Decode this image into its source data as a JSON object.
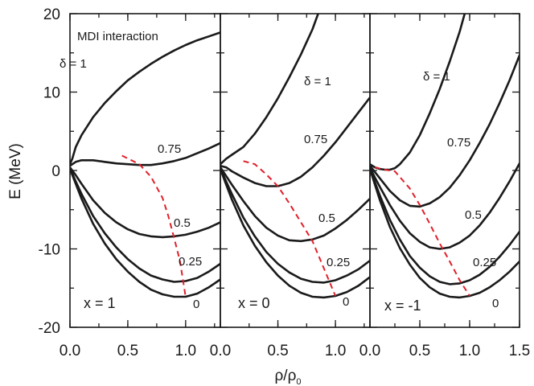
{
  "chart_data": {
    "type": "line",
    "xlabel": "ρ/ρ",
    "xlabel_sub": "0",
    "ylabel": "E (MeV)",
    "ylim": [
      -20,
      20
    ],
    "yticks": [
      "20",
      "10",
      "0",
      "-10",
      "-20"
    ],
    "xticks_first": [
      "0.0",
      "0.5",
      "1.0"
    ],
    "xticks_second": [
      "0.0",
      "0.5",
      "1.0"
    ],
    "xticks_third": [
      "0.0",
      "0.5",
      "1.0",
      "1.5"
    ],
    "annotation": "MDI interaction",
    "panels": [
      {
        "x_param_label": "x = 1",
        "xlim": [
          0,
          1.3
        ],
        "series": [
          {
            "label": "δ = 1",
            "x": [
              0.0,
              0.02,
              0.05,
              0.1,
              0.2,
              0.3,
              0.4,
              0.5,
              0.6,
              0.7,
              0.8,
              0.9,
              1.0,
              1.1,
              1.2,
              1.3
            ],
            "y": [
              0.8,
              1.5,
              3.0,
              4.5,
              6.8,
              8.6,
              10.1,
              11.5,
              12.6,
              13.6,
              14.5,
              15.3,
              16.0,
              16.6,
              17.1,
              17.6
            ]
          },
          {
            "label": "0.75",
            "x": [
              0.0,
              0.05,
              0.1,
              0.2,
              0.3,
              0.4,
              0.5,
              0.6,
              0.7,
              0.8,
              0.9,
              1.0,
              1.1,
              1.2,
              1.3
            ],
            "y": [
              0.6,
              1.1,
              1.3,
              1.3,
              1.1,
              0.9,
              0.8,
              0.7,
              0.7,
              0.9,
              1.2,
              1.6,
              2.2,
              2.8,
              3.5
            ]
          },
          {
            "label": "0.5",
            "x": [
              0.0,
              0.05,
              0.1,
              0.2,
              0.3,
              0.4,
              0.5,
              0.6,
              0.7,
              0.8,
              0.9,
              1.0,
              1.1,
              1.2,
              1.3
            ],
            "y": [
              0.4,
              -0.6,
              -1.7,
              -3.8,
              -5.4,
              -6.6,
              -7.5,
              -8.1,
              -8.4,
              -8.5,
              -8.4,
              -8.2,
              -7.8,
              -7.3,
              -6.6
            ]
          },
          {
            "label": "0.25",
            "x": [
              0.0,
              0.05,
              0.1,
              0.2,
              0.3,
              0.4,
              0.5,
              0.6,
              0.7,
              0.8,
              0.9,
              1.0,
              1.1,
              1.2,
              1.3
            ],
            "y": [
              0.3,
              -1.4,
              -3.0,
              -5.8,
              -8.0,
              -9.8,
              -11.3,
              -12.5,
              -13.4,
              -13.9,
              -14.2,
              -14.1,
              -13.7,
              -12.9,
              -11.9
            ]
          },
          {
            "label": "0",
            "x": [
              0.0,
              0.05,
              0.1,
              0.2,
              0.3,
              0.4,
              0.5,
              0.6,
              0.7,
              0.8,
              0.9,
              1.0,
              1.1,
              1.2,
              1.3
            ],
            "y": [
              0.2,
              -1.7,
              -3.6,
              -6.8,
              -9.3,
              -11.3,
              -12.9,
              -14.2,
              -15.2,
              -15.8,
              -16.1,
              -16.1,
              -15.7,
              -14.9,
              -13.9
            ]
          }
        ],
        "saturation": {
          "x": [
            0.45,
            0.6,
            0.7,
            0.8,
            0.85,
            0.9,
            0.95,
            1.0
          ],
          "y": [
            1.9,
            0.8,
            -0.8,
            -3.5,
            -5.8,
            -8.6,
            -11.5,
            -16.1
          ]
        }
      },
      {
        "x_param_label": "x = 0",
        "xlim": [
          0,
          1.3
        ],
        "series": [
          {
            "label": "δ = 1",
            "x": [
              0.0,
              0.05,
              0.1,
              0.2,
              0.3,
              0.4,
              0.5,
              0.6,
              0.7,
              0.8,
              0.85
            ],
            "y": [
              0.8,
              1.5,
              2.0,
              3.0,
              4.7,
              6.8,
              9.2,
              11.9,
              14.8,
              18.0,
              20.0
            ]
          },
          {
            "label": "0.75",
            "x": [
              0.0,
              0.05,
              0.1,
              0.2,
              0.3,
              0.4,
              0.5,
              0.6,
              0.7,
              0.8,
              0.9,
              1.0,
              1.1,
              1.2,
              1.3
            ],
            "y": [
              0.6,
              0.4,
              -0.1,
              -0.9,
              -1.6,
              -2.0,
              -2.0,
              -1.6,
              -0.8,
              0.4,
              1.9,
              3.6,
              5.5,
              7.4,
              9.3
            ]
          },
          {
            "label": "0.5",
            "x": [
              0.0,
              0.05,
              0.1,
              0.2,
              0.3,
              0.4,
              0.5,
              0.6,
              0.7,
              0.8,
              0.9,
              1.0,
              1.1,
              1.2,
              1.3
            ],
            "y": [
              0.4,
              -0.7,
              -1.8,
              -3.9,
              -5.8,
              -7.3,
              -8.3,
              -8.9,
              -9.0,
              -8.8,
              -8.3,
              -7.4,
              -6.3,
              -5.0,
              -3.6
            ]
          },
          {
            "label": "0.25",
            "x": [
              0.0,
              0.05,
              0.1,
              0.2,
              0.3,
              0.4,
              0.5,
              0.6,
              0.7,
              0.8,
              0.9,
              1.0,
              1.1,
              1.2,
              1.3
            ],
            "y": [
              0.3,
              -1.4,
              -3.0,
              -6.0,
              -8.4,
              -10.4,
              -11.9,
              -13.0,
              -13.8,
              -14.2,
              -14.3,
              -14.0,
              -13.4,
              -12.6,
              -11.5
            ]
          },
          {
            "label": "0",
            "x": [
              0.0,
              0.05,
              0.1,
              0.2,
              0.3,
              0.4,
              0.5,
              0.6,
              0.7,
              0.8,
              0.9,
              1.0,
              1.1,
              1.2,
              1.3
            ],
            "y": [
              0.2,
              -1.8,
              -3.7,
              -7.0,
              -9.6,
              -11.7,
              -13.4,
              -14.7,
              -15.6,
              -16.1,
              -16.2,
              -16.0,
              -15.5,
              -14.7,
              -13.6
            ]
          }
        ],
        "saturation": {
          "x": [
            0.2,
            0.3,
            0.4,
            0.5,
            0.6,
            0.7,
            0.8,
            0.9,
            1.0
          ],
          "y": [
            1.2,
            0.8,
            -0.5,
            -2.0,
            -4.2,
            -6.6,
            -9.0,
            -12.5,
            -16.0
          ]
        }
      },
      {
        "x_param_label": "x = -1",
        "xlim": [
          0,
          1.5
        ],
        "series": [
          {
            "label": "δ = 1",
            "x": [
              0.0,
              0.05,
              0.1,
              0.15,
              0.2,
              0.25,
              0.3,
              0.4,
              0.5,
              0.6,
              0.7,
              0.8,
              0.9,
              0.95
            ],
            "y": [
              0.8,
              0.4,
              0.2,
              0.1,
              0.1,
              0.3,
              0.8,
              2.3,
              4.5,
              7.3,
              10.4,
              13.9,
              17.7,
              20.0
            ]
          },
          {
            "label": "0.75",
            "x": [
              0.0,
              0.05,
              0.1,
              0.2,
              0.3,
              0.4,
              0.5,
              0.6,
              0.7,
              0.8,
              0.9,
              1.0,
              1.1,
              1.2,
              1.3,
              1.4,
              1.5
            ],
            "y": [
              0.6,
              -0.2,
              -1.0,
              -2.6,
              -3.8,
              -4.5,
              -4.6,
              -4.2,
              -3.4,
              -2.2,
              -0.6,
              1.3,
              3.5,
              5.9,
              8.6,
              11.5,
              14.7
            ]
          },
          {
            "label": "0.5",
            "x": [
              0.0,
              0.05,
              0.1,
              0.2,
              0.3,
              0.4,
              0.5,
              0.6,
              0.7,
              0.8,
              0.9,
              1.0,
              1.1,
              1.2,
              1.3,
              1.4,
              1.5
            ],
            "y": [
              0.4,
              -0.9,
              -2.1,
              -4.4,
              -6.4,
              -8.0,
              -9.1,
              -9.8,
              -10.0,
              -9.8,
              -9.2,
              -8.3,
              -7.0,
              -5.4,
              -3.5,
              -1.4,
              0.9
            ]
          },
          {
            "label": "0.25",
            "x": [
              0.0,
              0.05,
              0.1,
              0.2,
              0.3,
              0.4,
              0.5,
              0.6,
              0.7,
              0.8,
              0.9,
              1.0,
              1.1,
              1.2,
              1.3,
              1.4,
              1.5
            ],
            "y": [
              0.3,
              -1.5,
              -3.2,
              -6.3,
              -8.8,
              -10.9,
              -12.4,
              -13.5,
              -14.2,
              -14.5,
              -14.4,
              -14.0,
              -13.3,
              -12.3,
              -11.0,
              -9.5,
              -7.8
            ]
          },
          {
            "label": "0",
            "x": [
              0.0,
              0.05,
              0.1,
              0.2,
              0.3,
              0.4,
              0.5,
              0.6,
              0.7,
              0.8,
              0.9,
              1.0,
              1.1,
              1.2,
              1.3,
              1.4,
              1.5
            ],
            "y": [
              0.2,
              -1.8,
              -3.8,
              -7.2,
              -9.9,
              -12.0,
              -13.7,
              -14.9,
              -15.7,
              -16.1,
              -16.2,
              -16.0,
              -15.6,
              -14.9,
              -14.0,
              -12.9,
              -11.6
            ]
          }
        ],
        "saturation": {
          "x": [
            0.05,
            0.15,
            0.25,
            0.4,
            0.5,
            0.6,
            0.7,
            0.8,
            0.9,
            1.0
          ],
          "y": [
            0.4,
            0.1,
            -0.1,
            -2.3,
            -4.4,
            -6.8,
            -9.3,
            -11.6,
            -14.0,
            -16.0
          ]
        }
      }
    ]
  }
}
